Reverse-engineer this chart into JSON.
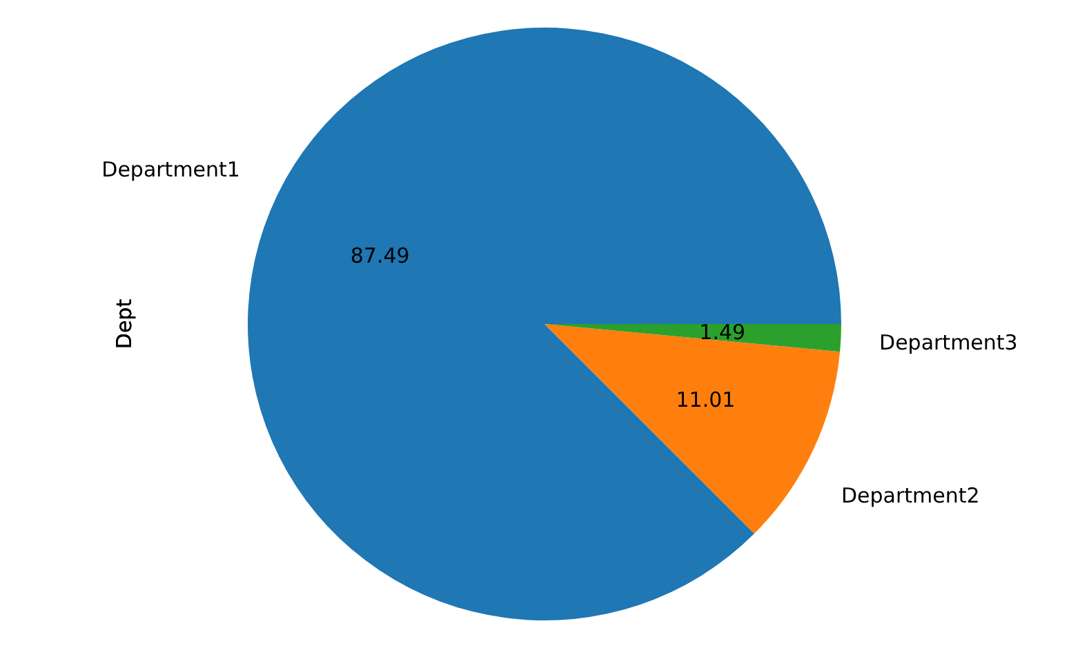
{
  "chart_data": {
    "type": "pie",
    "ylabel": "Dept",
    "categories": [
      "Department1",
      "Department2",
      "Department3"
    ],
    "values": [
      87.49,
      11.01,
      1.49
    ],
    "colors": [
      "#1f77b4",
      "#ff7f0e",
      "#2ca02c"
    ],
    "data_labels": true,
    "legend": false
  }
}
